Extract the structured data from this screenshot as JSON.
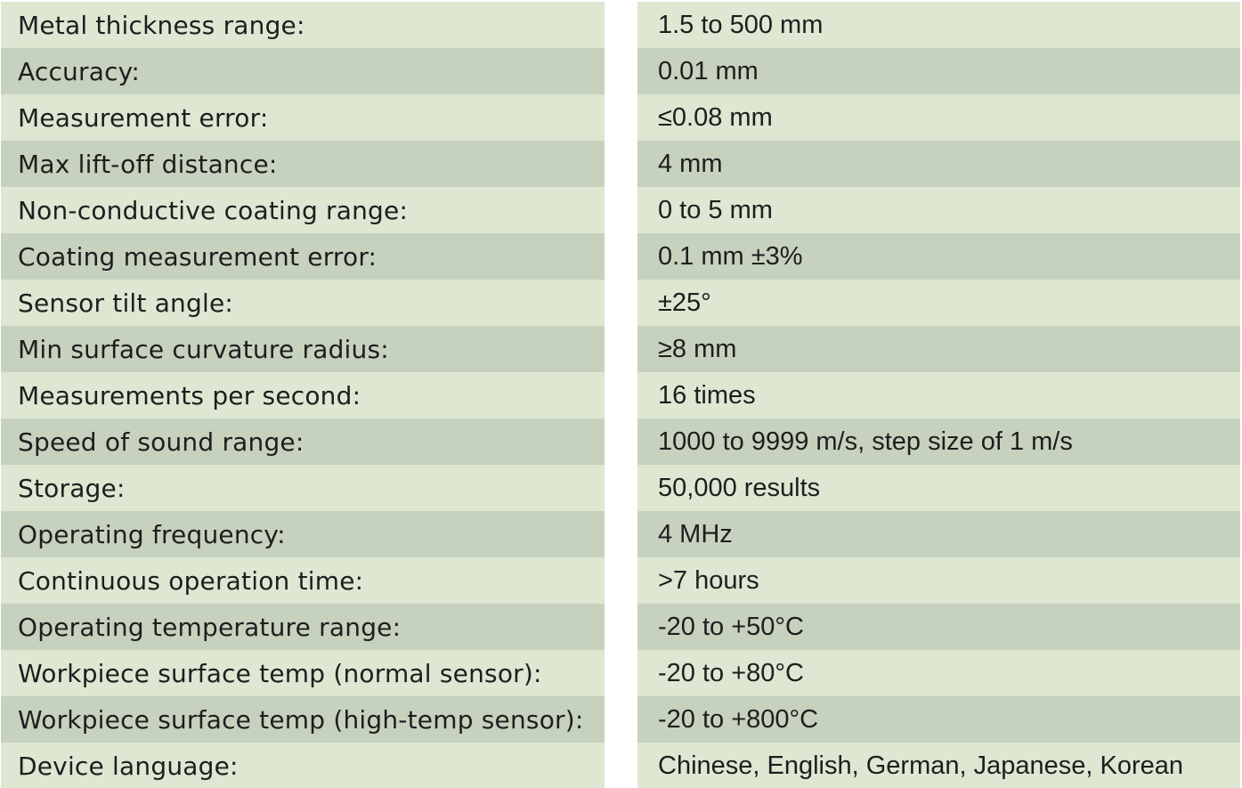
{
  "table": {
    "rows": [
      [
        "Metal thickness range:",
        "1.5 to 500 mm"
      ],
      [
        "Accuracy:",
        "0.01 mm"
      ],
      [
        "Measurement error:",
        "≤0.08 mm"
      ],
      [
        "Max lift-off distance:",
        "4 mm"
      ],
      [
        "Non-conductive coating range:",
        "0 to 5 mm"
      ],
      [
        "Coating measurement error:",
        "0.1 mm ±3%"
      ],
      [
        "Sensor tilt angle:",
        "±25°"
      ],
      [
        "Min surface curvature radius:",
        "≥8 mm"
      ],
      [
        "Measurements per second:",
        "16 times"
      ],
      [
        "Speed of sound range:",
        "1000 to 9999 m/s, step size of 1 m/s"
      ],
      [
        "Storage:",
        "50,000 results"
      ],
      [
        "Operating frequency:",
        "4 MHz"
      ],
      [
        "Continuous operation time:",
        ">7 hours"
      ],
      [
        "Operating temperature range:",
        "-20 to +50°C"
      ],
      [
        "Workpiece surface temp (normal sensor):",
        "-20 to +80°C"
      ],
      [
        "Workpiece surface temp (high-temp sensor):",
        "-20 to +800°C"
      ],
      [
        "Device language:",
        "Chinese, English, German, Japanese, Korean"
      ]
    ]
  }
}
